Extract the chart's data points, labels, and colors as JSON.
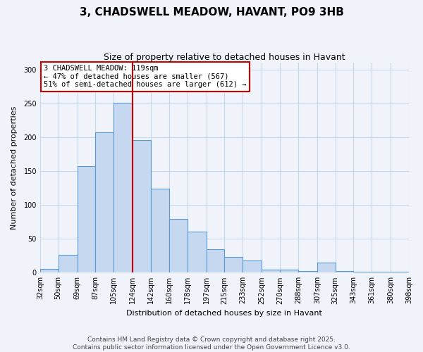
{
  "title": "3, CHADSWELL MEADOW, HAVANT, PO9 3HB",
  "subtitle": "Size of property relative to detached houses in Havant",
  "xlabel": "Distribution of detached houses by size in Havant",
  "ylabel": "Number of detached properties",
  "bins": [
    "32sqm",
    "50sqm",
    "69sqm",
    "87sqm",
    "105sqm",
    "124sqm",
    "142sqm",
    "160sqm",
    "178sqm",
    "197sqm",
    "215sqm",
    "233sqm",
    "252sqm",
    "270sqm",
    "288sqm",
    "307sqm",
    "325sqm",
    "343sqm",
    "361sqm",
    "380sqm",
    "398sqm"
  ],
  "bin_edges": [
    32,
    50,
    69,
    87,
    105,
    124,
    142,
    160,
    178,
    197,
    215,
    233,
    252,
    270,
    288,
    307,
    325,
    343,
    361,
    380,
    398
  ],
  "values": [
    5,
    26,
    157,
    207,
    251,
    196,
    124,
    79,
    61,
    35,
    23,
    18,
    4,
    4,
    2,
    15,
    2,
    1,
    1,
    1
  ],
  "bar_color": "#c5d8f0",
  "bar_edge_color": "#5b9bd5",
  "vline_x": 124,
  "vline_color": "#cc0000",
  "annotation_text": "3 CHADSWELL MEADOW: 119sqm\n← 47% of detached houses are smaller (567)\n51% of semi-detached houses are larger (612) →",
  "annotation_box_color": "#ffffff",
  "annotation_box_edge_color": "#cc0000",
  "ylim": [
    0,
    310
  ],
  "yticks": [
    0,
    50,
    100,
    150,
    200,
    250,
    300
  ],
  "footer1": "Contains HM Land Registry data © Crown copyright and database right 2025.",
  "footer2": "Contains public sector information licensed under the Open Government Licence v3.0.",
  "bg_color": "#f0f4fa",
  "grid_color": "#c8d8ea",
  "title_fontsize": 11,
  "subtitle_fontsize": 9,
  "axis_label_fontsize": 8,
  "tick_fontsize": 7,
  "annotation_fontsize": 7.5,
  "footer_fontsize": 6.5
}
